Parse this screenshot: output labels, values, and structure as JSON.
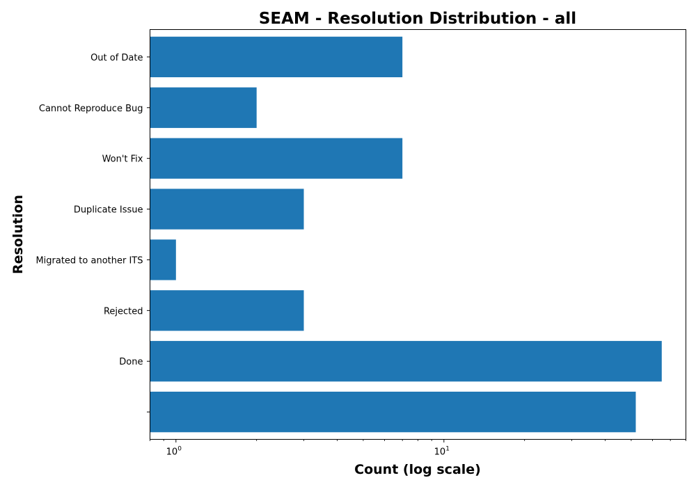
{
  "chart_data": {
    "type": "bar",
    "orientation": "horizontal",
    "title": "SEAM - Resolution Distribution - all",
    "xlabel": "Count (log scale)",
    "ylabel": "Resolution",
    "xscale": "log",
    "xlim": [
      0.8,
      80
    ],
    "x_ticks": [
      {
        "value": 1,
        "base": "10",
        "exp": "0"
      },
      {
        "value": 10,
        "base": "10",
        "exp": "1"
      }
    ],
    "categories": [
      "",
      "Done",
      "Rejected",
      "Migrated to another ITS",
      "Duplicate Issue",
      "Won't Fix",
      "Cannot Reproduce Bug",
      "Out of Date"
    ],
    "values": [
      52,
      65,
      3,
      1,
      3,
      7,
      2,
      7
    ],
    "bar_color": "#1f77b4",
    "grid": false,
    "legend": "none"
  }
}
